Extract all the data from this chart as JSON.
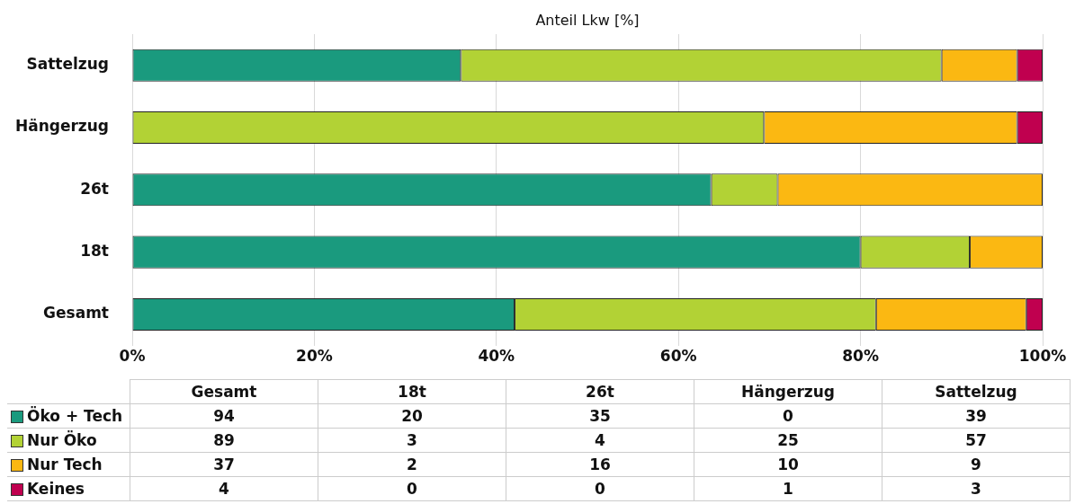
{
  "chart_data": [
    {
      "type": "bar",
      "orientation": "horizontal",
      "stacked": true,
      "xlabel": "Anteil Lkw [%]",
      "categories": [
        "Sattelzug",
        "Hängerzug",
        "26t",
        "18t",
        "Gesamt"
      ],
      "series": [
        {
          "color": "#1a9a7e",
          "values": [
            36.1,
            0,
            63.6,
            80,
            42.0
          ]
        },
        {
          "color": "#b2d235",
          "values": [
            52.8,
            69.4,
            7.3,
            12,
            39.7
          ]
        },
        {
          "color": "#fbb812",
          "values": [
            8.3,
            27.8,
            29.1,
            8,
            16.5
          ]
        },
        {
          "color": "#c0004f",
          "values": [
            2.8,
            2.8,
            0,
            0,
            1.8
          ]
        }
      ],
      "xlim": [
        0,
        100
      ],
      "xticks": [
        {
          "value": 0,
          "label": "0%"
        },
        {
          "value": 20,
          "label": "20%"
        },
        {
          "value": 40,
          "label": "40%"
        },
        {
          "value": 60,
          "label": "60%"
        },
        {
          "value": 80,
          "label": "80%"
        },
        {
          "value": 100,
          "label": "100%"
        }
      ],
      "grid": "x"
    },
    {
      "type": "other",
      "categories": [
        "Gesamt",
        "18t",
        "26t",
        "Hängerzug",
        "Sattelzug"
      ],
      "series": [
        {
          "name": "Öko + Tech",
          "color": "#1a9a7e",
          "values": [
            94,
            20,
            35,
            0,
            39
          ]
        },
        {
          "name": "Nur Öko",
          "color": "#b2d235",
          "values": [
            89,
            3,
            4,
            25,
            57
          ]
        },
        {
          "name": "Nur Tech",
          "color": "#fbb812",
          "values": [
            37,
            2,
            16,
            10,
            9
          ]
        },
        {
          "name": "Keines",
          "color": "#c0004f",
          "values": [
            4,
            0,
            0,
            1,
            3
          ]
        }
      ],
      "data_labels": true,
      "legend": "left"
    }
  ]
}
